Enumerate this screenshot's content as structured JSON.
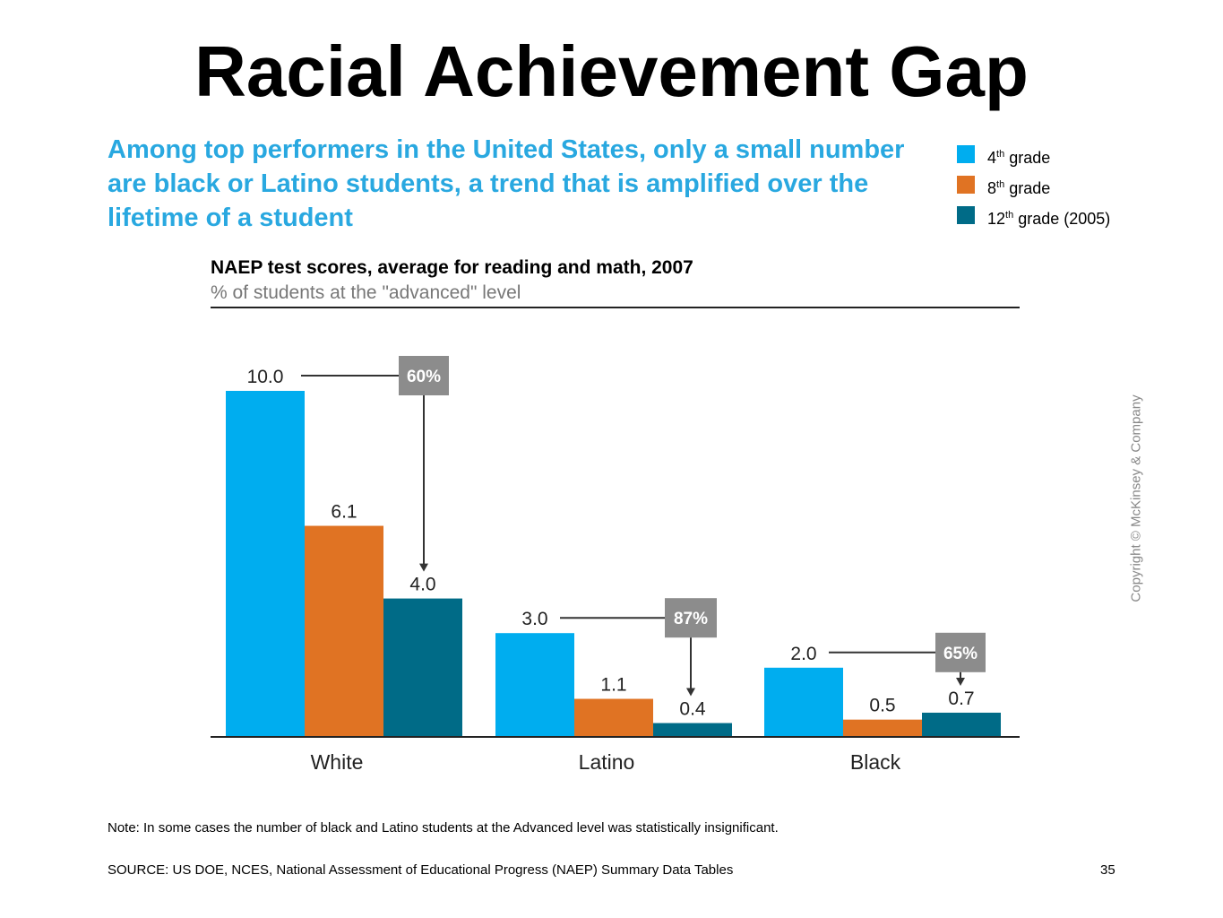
{
  "slide": {
    "title": "Racial Achievement Gap",
    "headline": "Among top performers in the United States, only a small number are black or Latino students, a trend that is amplified over the lifetime of a student",
    "copyright": "Copyright © McKinsey & Company",
    "note": "Note: In some cases the number of black and Latino students at the Advanced level was statistically insignificant.",
    "source": "SOURCE: US DOE, NCES, National Assessment of Educational Progress (NAEP) Summary Data Tables",
    "page_number": "35"
  },
  "legend": [
    {
      "base": "4",
      "sup": "th",
      "rest": " grade",
      "color": "#00adef"
    },
    {
      "base": "8",
      "sup": "th",
      "rest": " grade",
      "color": "#e07323"
    },
    {
      "base": "12",
      "sup": "th",
      "rest": " grade (2005)",
      "color": "#006b87"
    }
  ],
  "chart_data": {
    "type": "bar",
    "title": "NAEP test scores, average for reading and math, 2007",
    "subtitle": "% of students at the \"advanced\" level",
    "categories": [
      "White",
      "Latino",
      "Black"
    ],
    "series": [
      {
        "name": "4th grade",
        "values": [
          10.0,
          3.0,
          2.0
        ],
        "color": "#00adef"
      },
      {
        "name": "8th grade",
        "values": [
          6.1,
          1.1,
          0.5
        ],
        "color": "#e07323"
      },
      {
        "name": "12th grade (2005)",
        "values": [
          4.0,
          0.4,
          0.7
        ],
        "color": "#006b87"
      }
    ],
    "value_labels": [
      [
        "10.0",
        "3.0",
        "2.0"
      ],
      [
        "6.1",
        "1.1",
        "0.5"
      ],
      [
        "4.0",
        "0.4",
        "0.7"
      ]
    ],
    "annotations": [
      {
        "category": "White",
        "text": "60%"
      },
      {
        "category": "Latino",
        "text": "87%"
      },
      {
        "category": "Black",
        "text": "65%"
      }
    ],
    "ylim": [
      0,
      10
    ],
    "grid": false,
    "legend_position": "top-right"
  }
}
